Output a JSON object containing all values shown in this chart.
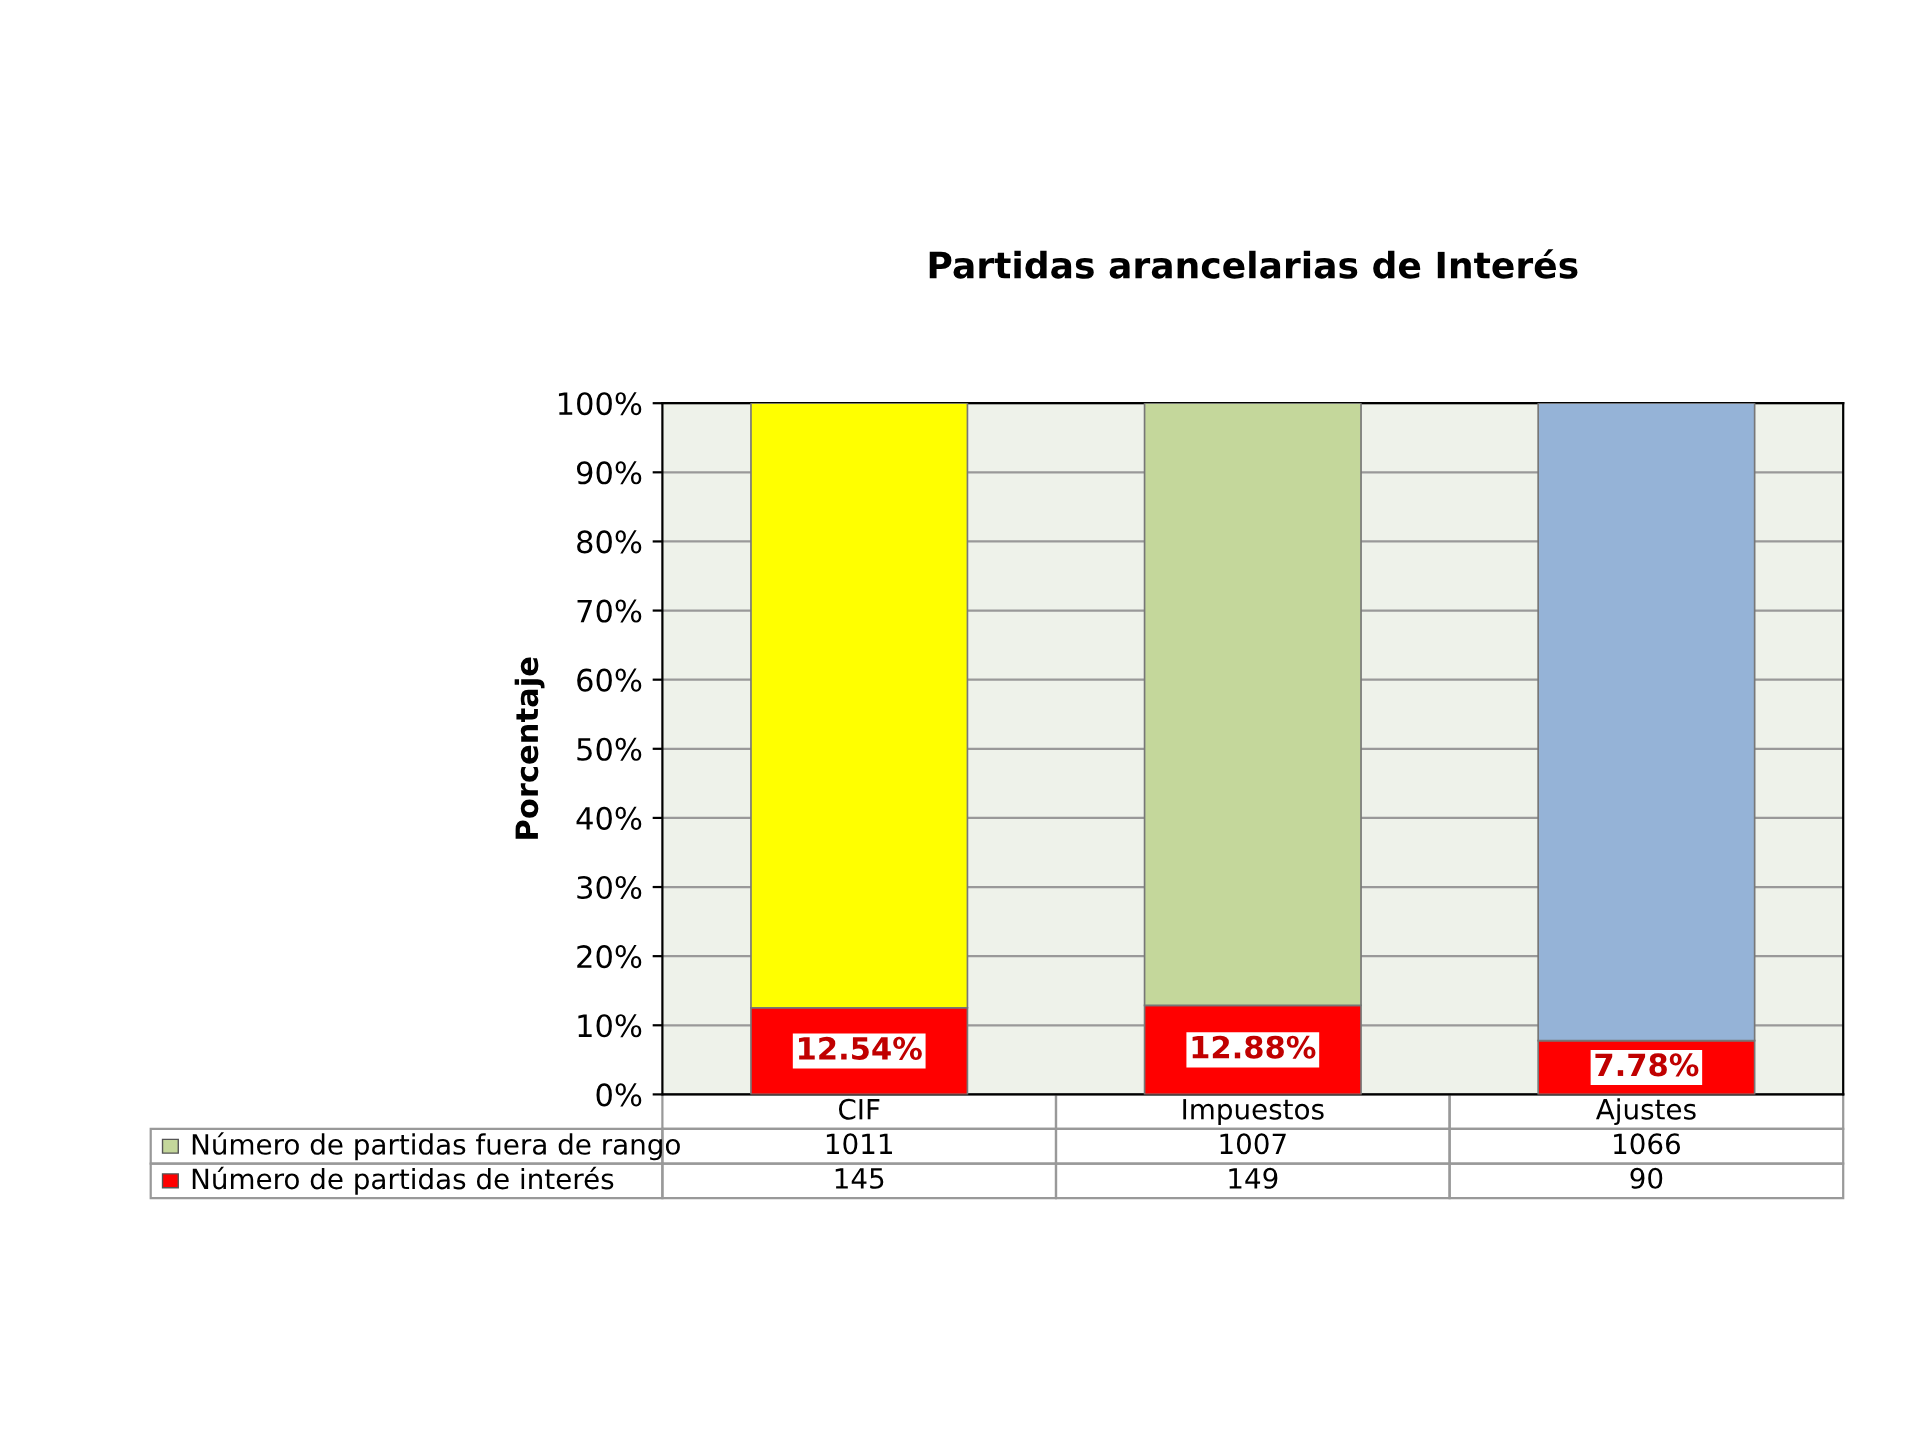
{
  "chart_data": {
    "type": "bar",
    "stacked": true,
    "title": "Partidas arancelarias de Interés",
    "ylabel": "Porcentaje",
    "categories": [
      "CIF",
      "Impuestos",
      "Ajustes"
    ],
    "series": [
      {
        "name": "Número de partidas de interés",
        "color": "#ff0000",
        "values": [
          12.54,
          12.88,
          7.78
        ],
        "value_labels": [
          "12.54%",
          "12.88%",
          "7.78%"
        ]
      },
      {
        "name": "Número de partidas fuera de rango",
        "color": "#c4d79b",
        "colors": [
          "#ffff00",
          "#c4d79b",
          "#95b3d7"
        ],
        "values": [
          87.46,
          87.12,
          92.22
        ]
      }
    ],
    "annotations": [
      "1011",
      "1007",
      "1066",
      "145",
      "149",
      "90"
    ],
    "ylim": [
      0,
      100
    ],
    "yticks": [
      {
        "value": 0,
        "label": "0%"
      },
      {
        "value": 10,
        "label": "10%"
      },
      {
        "value": 20,
        "label": "20%"
      },
      {
        "value": 30,
        "label": "30%"
      },
      {
        "value": 40,
        "label": "40%"
      },
      {
        "value": 50,
        "label": "50%"
      },
      {
        "value": 60,
        "label": "60%"
      },
      {
        "value": 70,
        "label": "70%"
      },
      {
        "value": 80,
        "label": "80%"
      },
      {
        "value": 90,
        "label": "90%"
      },
      {
        "value": 100,
        "label": "100%"
      }
    ],
    "grid": "y",
    "legend": "bottom"
  }
}
